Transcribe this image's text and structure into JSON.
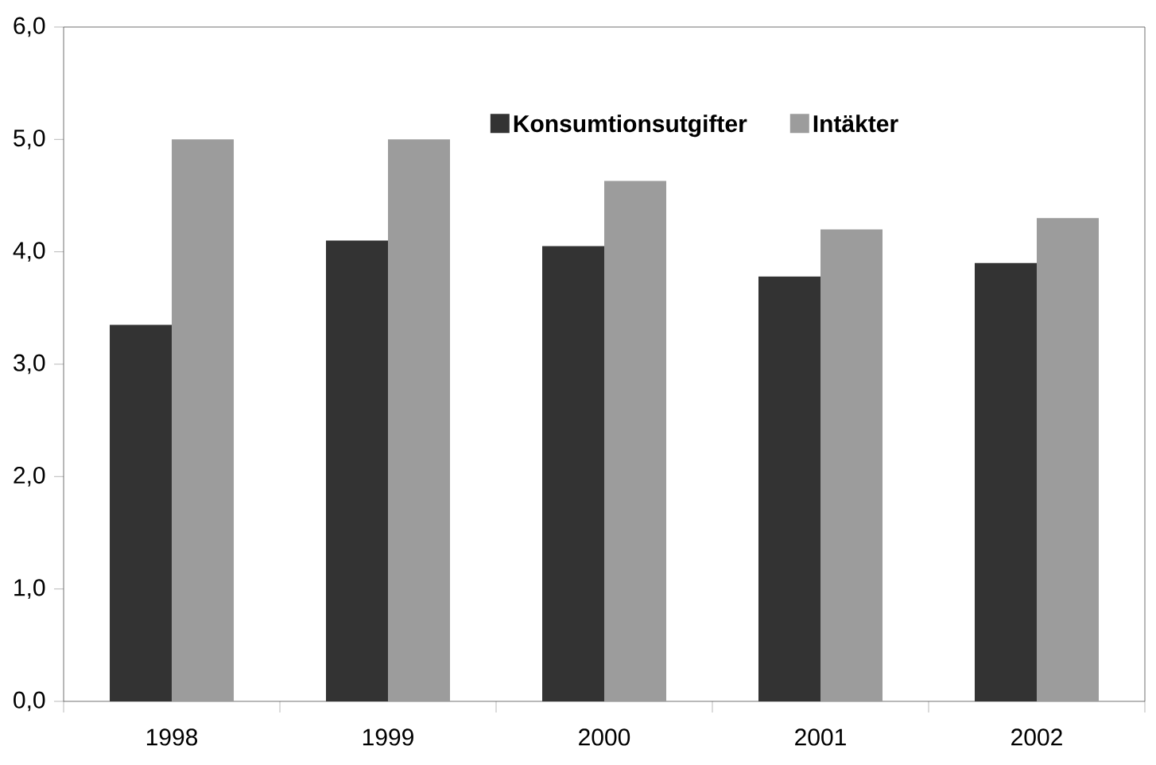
{
  "chart_data": {
    "type": "bar",
    "categories": [
      "1998",
      "1999",
      "2000",
      "2001",
      "2002"
    ],
    "series": [
      {
        "name": "Konsumtionsutgifter",
        "color": "#333333",
        "values": [
          3.35,
          4.1,
          4.05,
          3.78,
          3.9
        ]
      },
      {
        "name": "Intäkter",
        "color": "#9c9c9c",
        "values": [
          5.0,
          5.0,
          4.63,
          4.2,
          4.3
        ]
      }
    ],
    "ylim": [
      0,
      6
    ],
    "yticks": [
      {
        "value": 0,
        "label": "0,0"
      },
      {
        "value": 1,
        "label": "1,0"
      },
      {
        "value": 2,
        "label": "2,0"
      },
      {
        "value": 3,
        "label": "3,0"
      },
      {
        "value": 4,
        "label": "4,0"
      },
      {
        "value": 5,
        "label": "5,0"
      },
      {
        "value": 6,
        "label": "6,0"
      }
    ],
    "legend": "top right",
    "grid": false
  }
}
